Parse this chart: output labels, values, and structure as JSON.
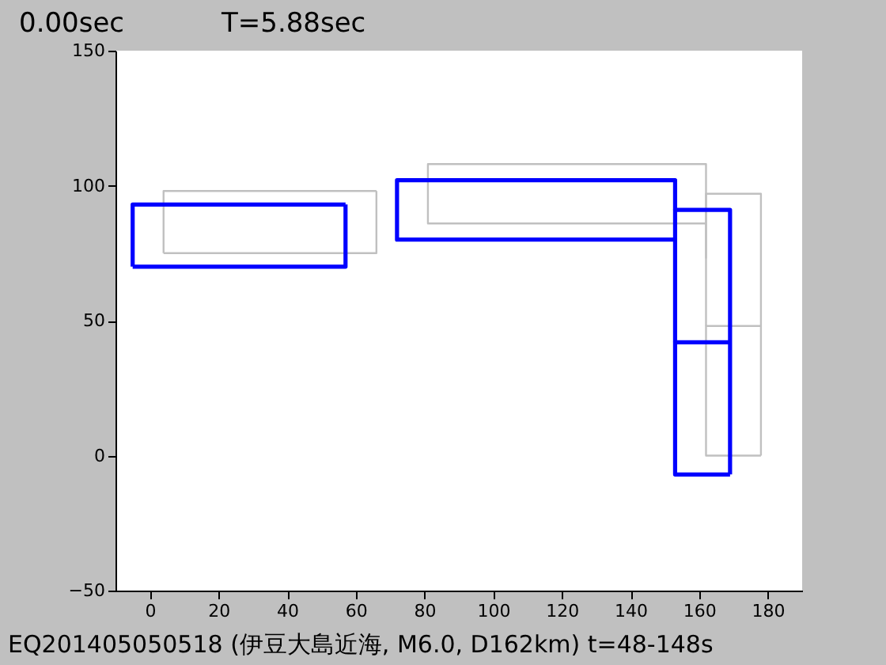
{
  "chart_data": {
    "type": "line",
    "annotations": [
      "0.00sec",
      "T=5.88sec",
      "EQ201405050518 (伊豆大島近海, M6.0, D162km) t=48-148s"
    ],
    "xlim": [
      -10,
      190
    ],
    "xticks": [
      0,
      20,
      40,
      60,
      80,
      100,
      120,
      140,
      160,
      180
    ],
    "ylim": [
      -50,
      150
    ],
    "yticks": [
      -50,
      0,
      50,
      100,
      150
    ],
    "grid": false,
    "marker": "none",
    "line_style": "solid",
    "series": [
      {
        "color": "#c0c0c0",
        "x": [
          4,
          4,
          66
        ],
        "values": [
          75,
          98,
          98
        ]
      },
      {
        "color": "#c0c0c0",
        "x": [
          66,
          66,
          4
        ],
        "values": [
          98,
          75,
          75
        ]
      },
      {
        "color": "#c0c0c0",
        "x": [
          162,
          81,
          81,
          162,
          162,
          162
        ],
        "values": [
          86,
          86,
          108,
          108,
          97,
          73
        ]
      },
      {
        "color": "#c0c0c0",
        "x": [
          162,
          162,
          178,
          178
        ],
        "values": [
          48,
          97,
          97,
          0
        ]
      },
      {
        "color": "#c0c0c0",
        "x": [
          178,
          162,
          162,
          178
        ],
        "values": [
          0,
          0,
          48,
          48
        ]
      },
      {
        "color": "#0000ff",
        "x": [
          -5,
          -5,
          57
        ],
        "values": [
          70,
          93,
          93
        ]
      },
      {
        "color": "#0000ff",
        "x": [
          57,
          57,
          -5
        ],
        "values": [
          93,
          70,
          70
        ]
      },
      {
        "color": "#0000ff",
        "x": [
          153,
          72,
          72,
          153,
          153
        ],
        "values": [
          80,
          80,
          102,
          102,
          91
        ]
      },
      {
        "color": "#0000ff",
        "x": [
          153,
          153,
          169,
          169
        ],
        "values": [
          42,
          91,
          91,
          -7
        ]
      },
      {
        "color": "#0000ff",
        "x": [
          169,
          153,
          153,
          169
        ],
        "values": [
          -7,
          -7,
          42,
          42
        ]
      }
    ]
  }
}
